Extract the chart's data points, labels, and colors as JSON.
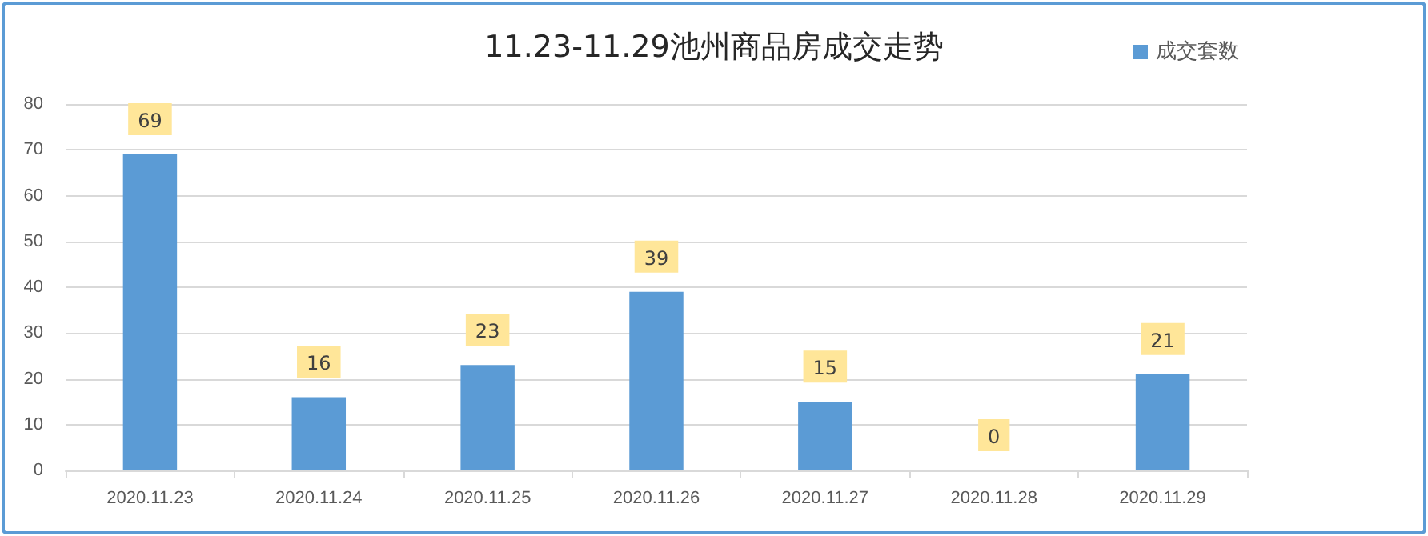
{
  "chart_data": {
    "type": "bar",
    "title": "11.23-11.29池州商品房成交走势",
    "categories": [
      "2020.11.23",
      "2020.11.24",
      "2020.11.25",
      "2020.11.26",
      "2020.11.27",
      "2020.11.28",
      "2020.11.29"
    ],
    "series": [
      {
        "name": "成交套数",
        "color": "#5b9bd5",
        "values": [
          69,
          16,
          23,
          39,
          15,
          0,
          21
        ]
      }
    ],
    "ylim": [
      0,
      80
    ],
    "yticks": [
      0,
      10,
      20,
      30,
      40,
      50,
      60,
      70,
      80
    ],
    "grid": "y",
    "legend": "top right",
    "data_labels": true
  }
}
